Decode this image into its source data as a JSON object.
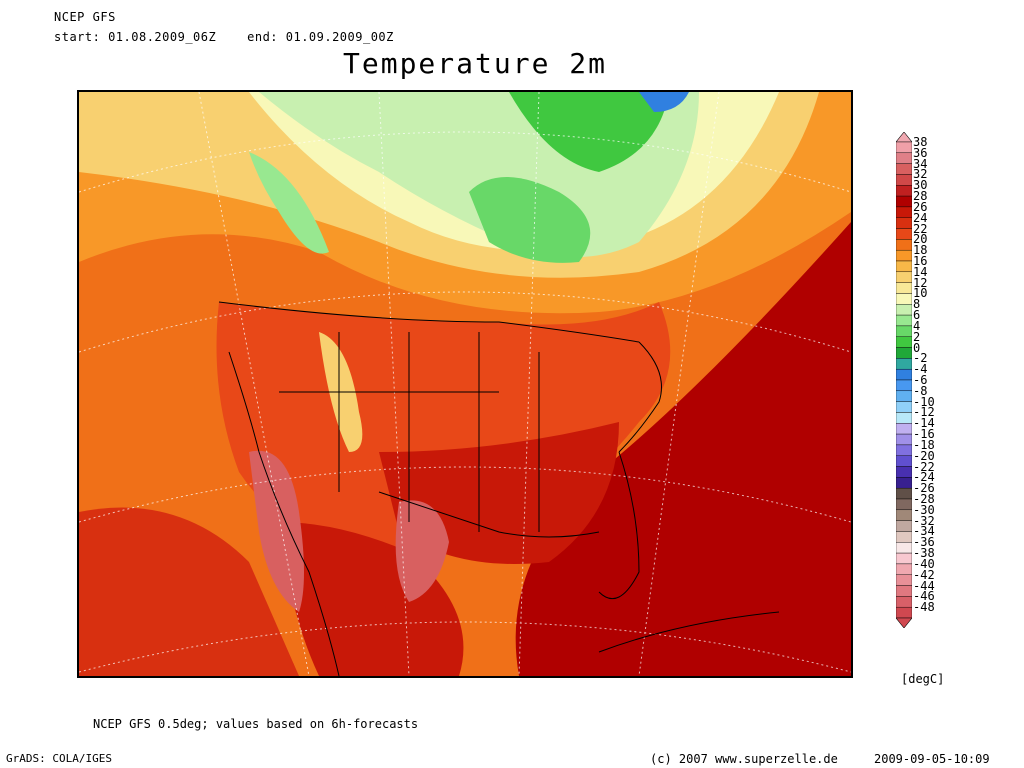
{
  "header": {
    "line1": "NCEP GFS",
    "line2": "start: 01.08.2009_06Z    end: 01.09.2009_00Z"
  },
  "title": "Temperature 2m",
  "colorbar": {
    "units": "[degC]",
    "labels": [
      "38",
      "36",
      "34",
      "32",
      "30",
      "28",
      "26",
      "24",
      "22",
      "20",
      "18",
      "16",
      "14",
      "12",
      "10",
      "8",
      "6",
      "4",
      "2",
      "0",
      "-2",
      "-4",
      "-6",
      "-8",
      "-10",
      "-12",
      "-14",
      "-16",
      "-18",
      "-20",
      "-22",
      "-24",
      "-26",
      "-28",
      "-30",
      "-32",
      "-34",
      "-36",
      "-38",
      "-40",
      "-42",
      "-44",
      "-46",
      "-48"
    ],
    "colors": [
      "#f0a0a8",
      "#e08088",
      "#d86060",
      "#d04848",
      "#c02020",
      "#b00000",
      "#c81808",
      "#d83010",
      "#e84818",
      "#f07018",
      "#f89828",
      "#f8b848",
      "#f8d070",
      "#f8e898",
      "#f8f8b8",
      "#c8f0b0",
      "#98e890",
      "#68d868",
      "#40c840",
      "#20a838",
      "#30a8a0",
      "#3080e0",
      "#4898f0",
      "#60b0f0",
      "#90d0f8",
      "#b8e8f8",
      "#c0b0f0",
      "#a090e8",
      "#8070e0",
      "#6050d0",
      "#4830b0",
      "#382090",
      "#605048",
      "#806860",
      "#a08878",
      "#c0a8a0",
      "#e0c8c0",
      "#f8e8e8",
      "#f8c8d0",
      "#f0a8b0",
      "#e89098",
      "#e07880",
      "#d86068",
      "#d04850"
    ],
    "arrow_top_color": "#f0a8b0",
    "arrow_bottom_color": "#d04850"
  },
  "footer": {
    "note": "NCEP GFS 0.5deg; values based on 6h-forecasts",
    "left": "GrADS: COLA/IGES",
    "middle": "(c) 2007 www.superzelle.de",
    "right": "2009-09-05-10:09"
  }
}
